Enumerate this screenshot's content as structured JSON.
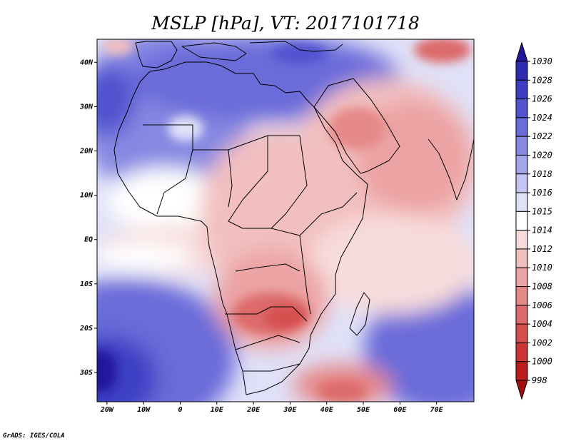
{
  "title": "MSLP [hPa], VT: 2017101718",
  "credit": "GrADS: IGES/COLA",
  "map": {
    "lon_labels": [
      "20W",
      "10W",
      "0",
      "10E",
      "20E",
      "30E",
      "40E",
      "50E",
      "60E",
      "70E"
    ],
    "lat_labels": [
      "40N",
      "30N",
      "20N",
      "10N",
      "EQ",
      "10S",
      "20S",
      "30S"
    ]
  },
  "colorbar": {
    "levels": [
      "1030",
      "1028",
      "1026",
      "1024",
      "1022",
      "1020",
      "1018",
      "1016",
      "1015",
      "1014",
      "1012",
      "1010",
      "1008",
      "1006",
      "1004",
      "1002",
      "1000",
      "998"
    ],
    "colors": [
      "#23159c",
      "#2e2bb2",
      "#3c3fc4",
      "#5153cf",
      "#6a6cd9",
      "#8688e2",
      "#a3a6ea",
      "#c2c4f2",
      "#e0e1f8",
      "#ffffff",
      "#f8dcdc",
      "#f2bfbf",
      "#eca3a3",
      "#e58888",
      "#dd6b6b",
      "#d54f4f",
      "#cc3434",
      "#bb1b1b",
      "#a30e0e"
    ]
  }
}
